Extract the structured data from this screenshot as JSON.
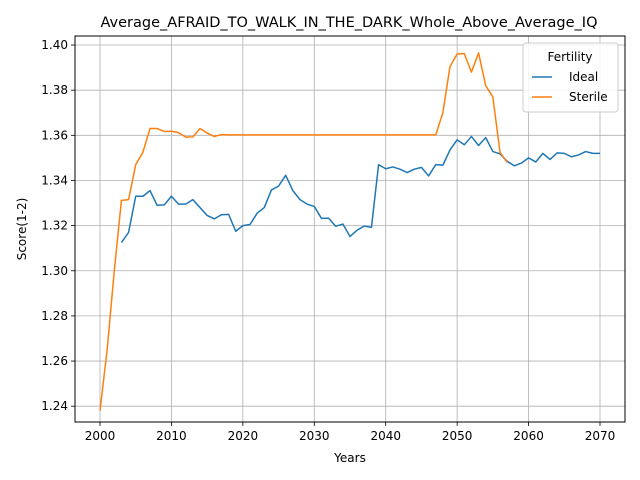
{
  "chart_data": {
    "type": "line",
    "title": "Average_AFRAID_TO_WALK_IN_THE_DARK_Whole_Above_Average_IQ",
    "xlabel": "Years",
    "ylabel": "Score(1-2)",
    "xlim": [
      1996.5,
      2073.5
    ],
    "ylim": [
      1.233,
      1.404
    ],
    "xticks": [
      2000,
      2010,
      2020,
      2030,
      2040,
      2050,
      2060,
      2070
    ],
    "yticks": [
      1.24,
      1.26,
      1.28,
      1.3,
      1.32,
      1.34,
      1.36,
      1.38,
      1.4
    ],
    "ytick_labels": [
      "1.24",
      "1.26",
      "1.28",
      "1.30",
      "1.32",
      "1.34",
      "1.36",
      "1.38",
      "1.40"
    ],
    "grid": true,
    "legend": {
      "title": "Fertility",
      "placement": "top-right"
    },
    "series": [
      {
        "name": "Ideal",
        "color": "#1f77b4",
        "x": [
          2003,
          2004,
          2005,
          2006,
          2007,
          2008,
          2009,
          2010,
          2011,
          2012,
          2013,
          2014,
          2015,
          2016,
          2017,
          2018,
          2019,
          2020,
          2021,
          2022,
          2023,
          2024,
          2025,
          2026,
          2027,
          2028,
          2029,
          2030,
          2031,
          2032,
          2033,
          2034,
          2035,
          2036,
          2037,
          2038,
          2039,
          2040,
          2041,
          2042,
          2043,
          2044,
          2045,
          2046,
          2047,
          2048,
          2049,
          2050,
          2051,
          2052,
          2053,
          2054,
          2055,
          2056,
          2057,
          2058,
          2059,
          2060,
          2061,
          2062,
          2063,
          2064,
          2065,
          2066,
          2067,
          2068,
          2069,
          2070
        ],
        "y": [
          1.3125,
          1.317,
          1.333,
          1.333,
          1.3355,
          1.329,
          1.3292,
          1.333,
          1.3295,
          1.3295,
          1.3315,
          1.328,
          1.3245,
          1.323,
          1.3248,
          1.325,
          1.3175,
          1.32,
          1.3205,
          1.3255,
          1.328,
          1.3358,
          1.3375,
          1.3423,
          1.3355,
          1.3315,
          1.3295,
          1.3285,
          1.3232,
          1.3233,
          1.3197,
          1.3207,
          1.3152,
          1.318,
          1.3198,
          1.3192,
          1.347,
          1.3452,
          1.346,
          1.345,
          1.3435,
          1.345,
          1.3458,
          1.342,
          1.347,
          1.3468,
          1.3535,
          1.358,
          1.3558,
          1.3595,
          1.3555,
          1.359,
          1.3528,
          1.3518,
          1.3485,
          1.3465,
          1.3477,
          1.35,
          1.3482,
          1.352,
          1.3493,
          1.3522,
          1.352,
          1.3505,
          1.3513,
          1.3528,
          1.352,
          1.352
        ]
      },
      {
        "name": "Sterile",
        "color": "#ff7f0e",
        "x": [
          2000,
          2001,
          2002,
          2003,
          2004,
          2005,
          2006,
          2007,
          2008,
          2009,
          2010,
          2011,
          2012,
          2013,
          2014,
          2015,
          2016,
          2017,
          2018,
          2019,
          2020,
          2021,
          2022,
          2023,
          2024,
          2025,
          2026,
          2027,
          2028,
          2029,
          2030,
          2031,
          2032,
          2033,
          2034,
          2035,
          2036,
          2037,
          2038,
          2039,
          2040,
          2041,
          2042,
          2043,
          2044,
          2045,
          2046,
          2047,
          2048,
          2049,
          2050,
          2051,
          2052,
          2053,
          2054,
          2055,
          2056,
          2057
        ],
        "y": [
          1.238,
          1.265,
          1.3,
          1.3312,
          1.3315,
          1.347,
          1.3525,
          1.363,
          1.363,
          1.3617,
          1.3618,
          1.3612,
          1.3592,
          1.3593,
          1.363,
          1.361,
          1.3595,
          1.3603,
          1.3602,
          1.3602,
          1.3602,
          1.3602,
          1.3602,
          1.3602,
          1.3602,
          1.3602,
          1.3602,
          1.3602,
          1.3602,
          1.3602,
          1.3602,
          1.3602,
          1.3602,
          1.3602,
          1.3602,
          1.3602,
          1.3602,
          1.3602,
          1.3602,
          1.3602,
          1.3602,
          1.3602,
          1.3602,
          1.3602,
          1.3602,
          1.3602,
          1.3602,
          1.3602,
          1.37,
          1.3905,
          1.396,
          1.3962,
          1.388,
          1.3965,
          1.382,
          1.377,
          1.3525,
          1.348
        ]
      }
    ]
  }
}
